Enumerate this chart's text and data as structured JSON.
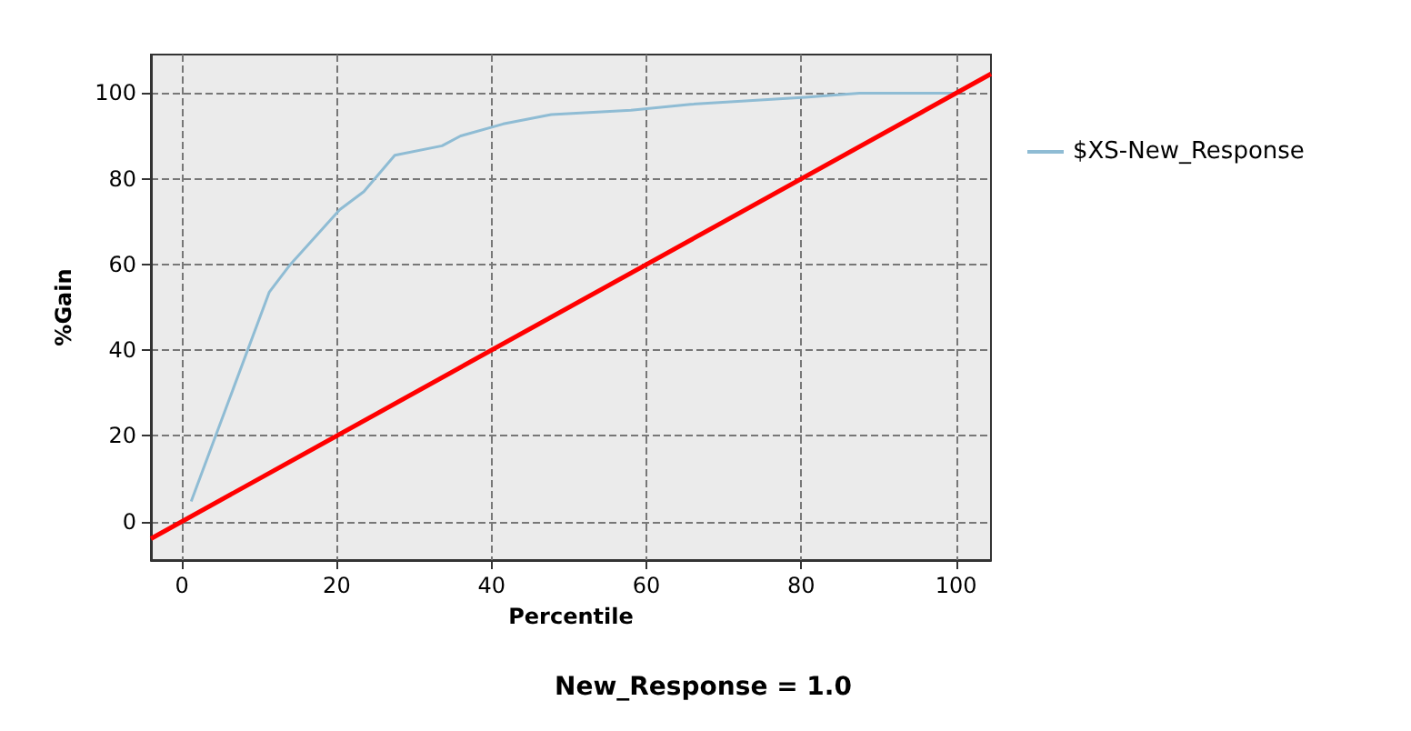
{
  "chart_data": {
    "type": "line",
    "title": "New_Response = 1.0",
    "xlabel": "Percentile",
    "ylabel": "%Gain",
    "xlim": [
      -4,
      104.5
    ],
    "ylim": [
      -9,
      109
    ],
    "xticks": [
      0,
      20,
      40,
      60,
      80,
      100
    ],
    "yticks": [
      0,
      20,
      40,
      60,
      80,
      100
    ],
    "grid": true,
    "legend": "top right",
    "marker": "none",
    "series": [
      {
        "name": "$XS-New_Response",
        "color": "#8fbcd4",
        "x": [
          1.2,
          11.3,
          14,
          20.4,
          23.5,
          27.5,
          33.6,
          36,
          41.5,
          47.7,
          58,
          65.7,
          80.5,
          87.5,
          100
        ],
        "values": [
          4.7,
          53.6,
          60,
          72.8,
          77,
          85.5,
          87.7,
          90,
          92.8,
          95,
          96,
          97.4,
          99,
          100,
          100
        ]
      },
      {
        "color": "#ff0000",
        "x": [
          -4,
          104.5
        ],
        "values": [
          -4,
          104.5
        ]
      }
    ]
  }
}
